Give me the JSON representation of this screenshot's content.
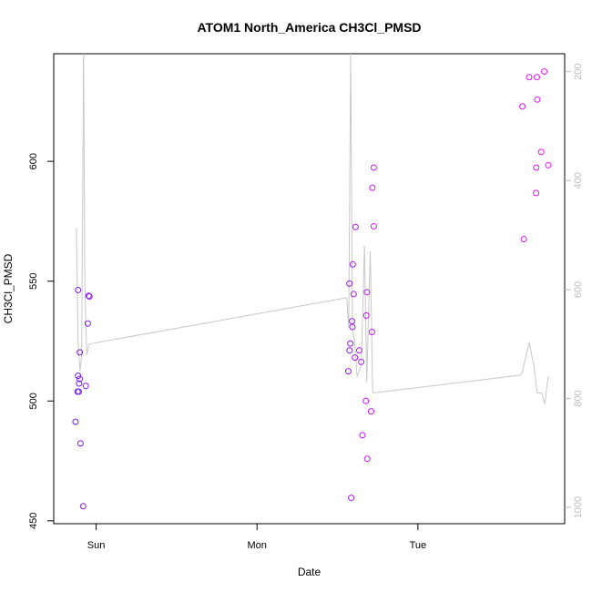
{
  "chart_data": {
    "type": "scatter",
    "title": "ATOM1 North_America CH3Cl_PMSD",
    "xlabel": "Date",
    "ylabel": "CH3Cl_PMSD",
    "x_ticks": [
      {
        "value": 1.0,
        "label": "Sun"
      },
      {
        "value": 2.0,
        "label": "Mon"
      },
      {
        "value": 3.0,
        "label": "Tue"
      }
    ],
    "xlim": [
      0.7364,
      3.9124
    ],
    "ylim": [
      448.8,
      644.9
    ],
    "y_ticks": [
      450,
      500,
      550,
      600
    ],
    "y2_axis": {
      "reversed": true,
      "lim": [
        1030,
        167
      ],
      "ticks": [
        200,
        400,
        600,
        800,
        1000
      ],
      "color": "#bdbdbd"
    },
    "grid": false,
    "series": [
      {
        "kind": "points",
        "marker": "open-circle",
        "color_start": "#6a1cf5",
        "color_end": "#ee16ee",
        "points": [
          [
            0.8717,
            491.3
          ],
          [
            0.885,
            503.9
          ],
          [
            0.8875,
            510.5
          ],
          [
            0.8875,
            546.3
          ],
          [
            0.8917,
            503.9
          ],
          [
            0.8941,
            507.3
          ],
          [
            0.8976,
            509.2
          ],
          [
            0.8985,
            520.3
          ],
          [
            0.9025,
            482.3
          ],
          [
            0.9192,
            456.1
          ],
          [
            0.9352,
            506.3
          ],
          [
            0.9481,
            532.3
          ],
          [
            0.9527,
            543.9
          ],
          [
            0.9581,
            543.6
          ],
          [
            2.5676,
            512.4
          ],
          [
            2.5744,
            549.0
          ],
          [
            2.5753,
            521.1
          ],
          [
            2.5801,
            524.0
          ],
          [
            2.5853,
            459.6
          ],
          [
            2.5907,
            533.3
          ],
          [
            2.5929,
            530.9
          ],
          [
            2.5949,
            557.0
          ],
          [
            2.6009,
            544.6
          ],
          [
            2.6088,
            518.1
          ],
          [
            2.6122,
            572.6
          ],
          [
            2.6355,
            521.1
          ],
          [
            2.6479,
            516.3
          ],
          [
            2.6552,
            485.7
          ],
          [
            2.6767,
            500.0
          ],
          [
            2.6796,
            535.7
          ],
          [
            2.6829,
            545.4
          ],
          [
            2.6848,
            475.9
          ],
          [
            2.7091,
            495.7
          ],
          [
            2.7148,
            528.8
          ],
          [
            2.7168,
            589.0
          ],
          [
            2.7258,
            572.9
          ],
          [
            2.7258,
            597.4
          ],
          [
            3.6497,
            622.9
          ],
          [
            3.6582,
            567.5
          ],
          [
            3.6915,
            635.1
          ],
          [
            3.7347,
            586.8
          ],
          [
            3.7355,
            597.4
          ],
          [
            3.7397,
            635.1
          ],
          [
            3.7421,
            625.8
          ],
          [
            3.7664,
            603.9
          ],
          [
            3.7854,
            637.5
          ],
          [
            3.8101,
            598.4
          ]
        ]
      },
      {
        "kind": "line",
        "axis": "right",
        "color": "#c8c8c8",
        "points": [
          [
            0.877,
            487.0
          ],
          [
            0.888,
            700.0
          ],
          [
            0.9,
            750.0
          ],
          [
            0.91,
            720.0
          ],
          [
            0.922,
            167.0
          ],
          [
            0.93,
            600.0
          ],
          [
            0.942,
            720.0
          ],
          [
            0.956,
            700.0
          ],
          [
            2.558,
            615.0
          ],
          [
            2.57,
            670.0
          ],
          [
            2.582,
            167.0
          ],
          [
            2.593,
            670.0
          ],
          [
            2.608,
            700.0
          ],
          [
            2.622,
            760.0
          ],
          [
            2.648,
            740.0
          ],
          [
            2.668,
            520.0
          ],
          [
            2.682,
            770.0
          ],
          [
            2.704,
            530.0
          ],
          [
            2.719,
            790.0
          ],
          [
            3.644,
            757.0
          ],
          [
            3.692,
            697.0
          ],
          [
            3.721,
            740.0
          ],
          [
            3.741,
            790.0
          ],
          [
            3.77,
            790.0
          ],
          [
            3.789,
            810.0
          ],
          [
            3.81,
            760.0
          ]
        ]
      }
    ]
  }
}
